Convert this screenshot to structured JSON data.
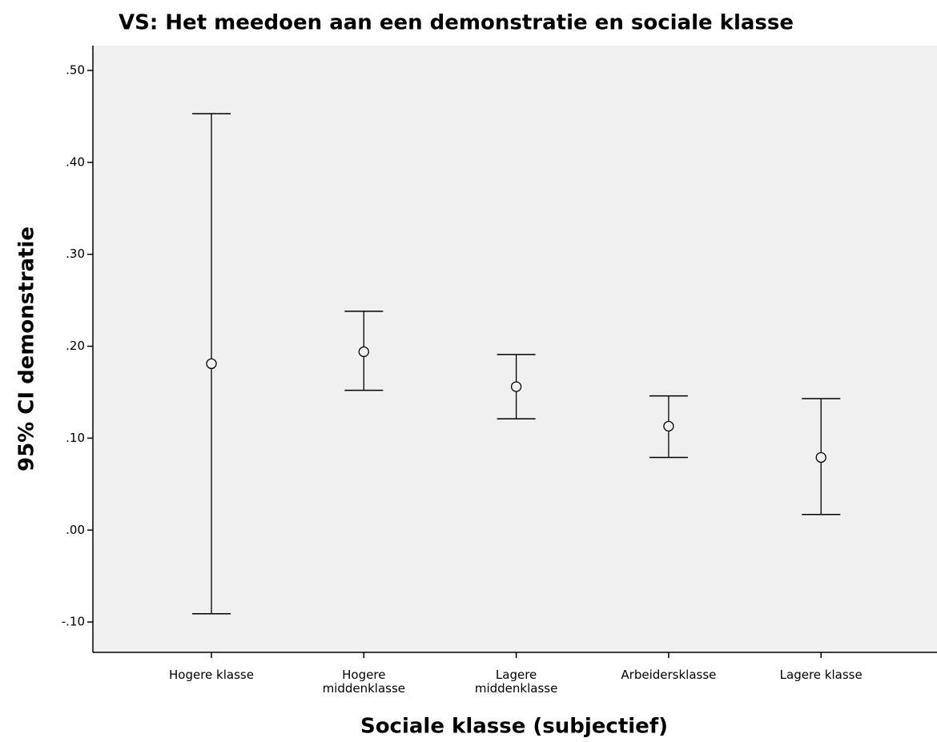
{
  "chart_data": {
    "type": "errorbar",
    "title": "VS: Het meedoen aan een demonstratie en sociale klasse",
    "x_label": "Sociale klasse (subjectief)",
    "y_label": "95% CI demonstratie",
    "categories": [
      [
        "Hogere klasse"
      ],
      [
        "Hogere",
        "middenklasse"
      ],
      [
        "Lagere",
        "middenklasse"
      ],
      [
        "Arbeidersklasse"
      ],
      [
        "Lagere klasse"
      ]
    ],
    "values": [
      0.181,
      0.194,
      0.156,
      0.113,
      0.079
    ],
    "ci_lower": [
      -0.091,
      0.152,
      0.121,
      0.079,
      0.017
    ],
    "ci_upper": [
      0.453,
      0.238,
      0.191,
      0.146,
      0.143
    ],
    "color": "#000000",
    "ylim": [
      -0.133,
      0.527
    ],
    "yticks": [
      {
        "value": -0.1,
        "label": "-.10"
      },
      {
        "value": 0,
        "label": ".00"
      },
      {
        "value": 0.1,
        "label": ".10"
      },
      {
        "value": 0.2,
        "label": ".20"
      },
      {
        "value": 0.3,
        "label": ".30"
      },
      {
        "value": 0.4,
        "label": ".40"
      },
      {
        "value": 0.5,
        "label": ".50"
      }
    ],
    "grid": false
  }
}
